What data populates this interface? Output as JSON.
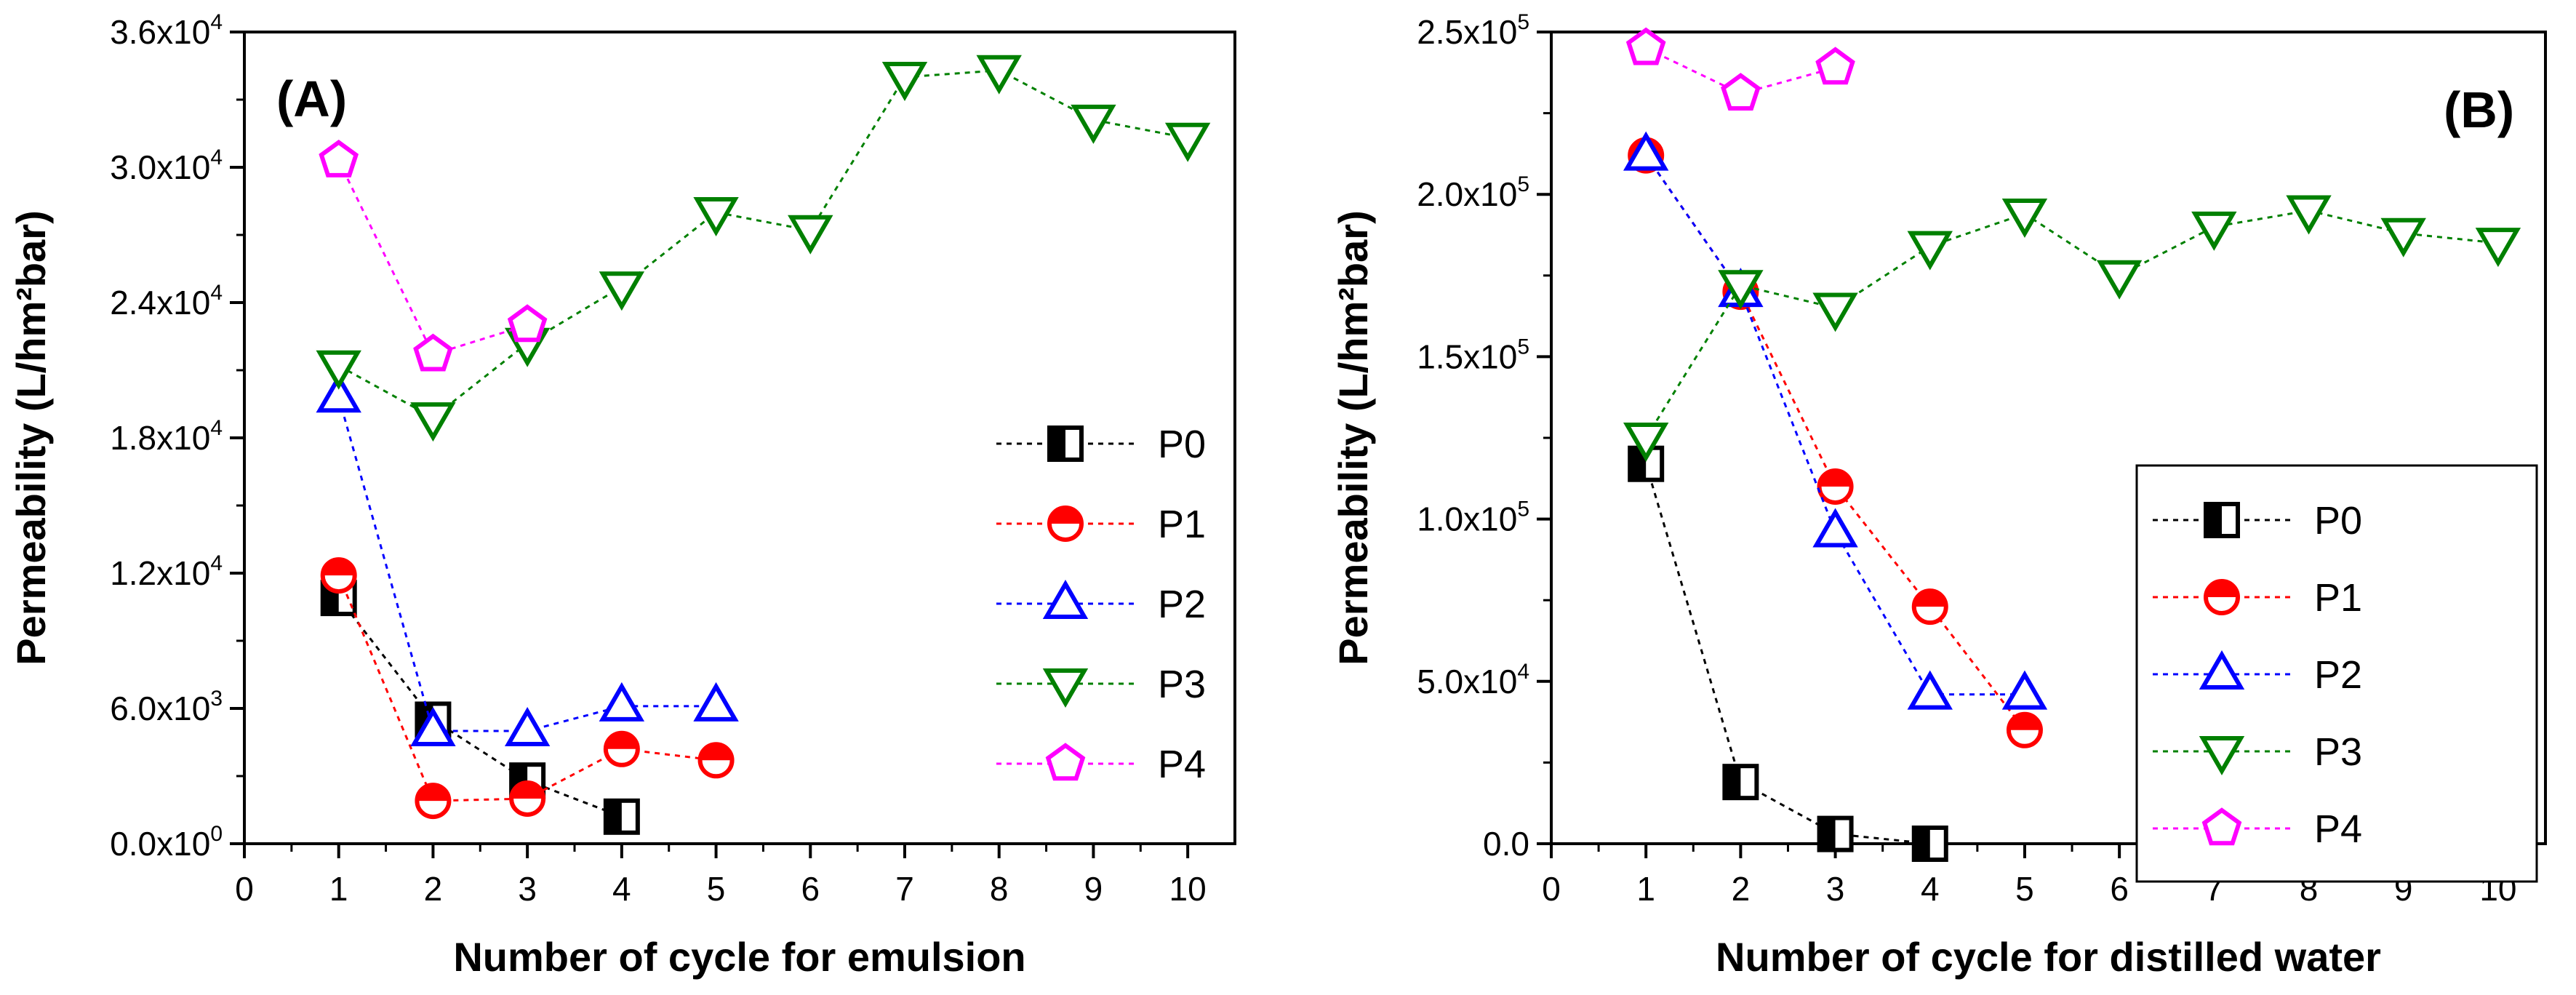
{
  "chart_data": [
    {
      "type": "scatter",
      "panel_label": "(A)",
      "xlabel": "Number of cycle for emulsion",
      "ylabel": "Permeability (L/hm²bar)",
      "xlim": [
        0,
        10.5
      ],
      "ylim": [
        0,
        36000
      ],
      "xticks": [
        0,
        1,
        2,
        3,
        4,
        5,
        6,
        7,
        8,
        9,
        10
      ],
      "yticks": [
        {
          "value": 0,
          "mantissa": "0.0",
          "exp": "0"
        },
        {
          "value": 6000,
          "mantissa": "6.0",
          "exp": "3"
        },
        {
          "value": 12000,
          "mantissa": "1.2",
          "exp": "4"
        },
        {
          "value": 18000,
          "mantissa": "1.8",
          "exp": "4"
        },
        {
          "value": 24000,
          "mantissa": "2.4",
          "exp": "4"
        },
        {
          "value": 30000,
          "mantissa": "3.0",
          "exp": "4"
        },
        {
          "value": 36000,
          "mantissa": "3.6",
          "exp": "4"
        }
      ],
      "legend_position": "right",
      "series": [
        {
          "name": "P0",
          "color": "#000000",
          "marker": "square",
          "x": [
            1,
            2,
            3,
            4
          ],
          "y": [
            10900,
            5500,
            2800,
            1200
          ]
        },
        {
          "name": "P1",
          "color": "#ff0000",
          "marker": "circle",
          "x": [
            1,
            2,
            3,
            4,
            5
          ],
          "y": [
            11900,
            1900,
            2000,
            4200,
            3700
          ]
        },
        {
          "name": "P2",
          "color": "#0000ff",
          "marker": "triangle-up",
          "x": [
            1,
            2,
            3,
            4,
            5
          ],
          "y": [
            19800,
            5000,
            5000,
            6100,
            6100
          ]
        },
        {
          "name": "P3",
          "color": "#008000",
          "marker": "triangle-down",
          "x": [
            1,
            2,
            3,
            4,
            5,
            6,
            7,
            8,
            9,
            10
          ],
          "y": [
            21200,
            18900,
            22200,
            24700,
            28000,
            27200,
            34000,
            34300,
            32100,
            31300
          ]
        },
        {
          "name": "P4",
          "color": "#ff00ff",
          "marker": "pentagon",
          "x": [
            1,
            2,
            3
          ],
          "y": [
            30300,
            21700,
            23000
          ]
        }
      ]
    },
    {
      "type": "scatter",
      "panel_label": "(B)",
      "xlabel": "Number of cycle for distilled water",
      "ylabel": "Permeability (L/hm²bar)",
      "xlim": [
        0,
        10.5
      ],
      "ylim": [
        0,
        250000
      ],
      "xticks": [
        0,
        1,
        2,
        3,
        4,
        5,
        6,
        7,
        8,
        9,
        10
      ],
      "yticks": [
        {
          "value": 0,
          "mantissa": "0.0",
          "exp": ""
        },
        {
          "value": 50000,
          "mantissa": "5.0",
          "exp": "4"
        },
        {
          "value": 100000,
          "mantissa": "1.0",
          "exp": "5"
        },
        {
          "value": 150000,
          "mantissa": "1.5",
          "exp": "5"
        },
        {
          "value": 200000,
          "mantissa": "2.0",
          "exp": "5"
        },
        {
          "value": 250000,
          "mantissa": "2.5",
          "exp": "5"
        }
      ],
      "legend_position": "bottom-right",
      "series": [
        {
          "name": "P0",
          "color": "#000000",
          "marker": "square",
          "x": [
            1,
            2,
            3,
            4
          ],
          "y": [
            117000,
            19000,
            3000,
            0
          ]
        },
        {
          "name": "P1",
          "color": "#ff0000",
          "marker": "circle",
          "x": [
            1,
            2,
            3,
            4,
            5
          ],
          "y": [
            212000,
            170000,
            110000,
            73000,
            35000
          ]
        },
        {
          "name": "P2",
          "color": "#0000ff",
          "marker": "triangle-up",
          "x": [
            1,
            2,
            3,
            4,
            5
          ],
          "y": [
            212000,
            170000,
            96000,
            46000,
            46000
          ]
        },
        {
          "name": "P3",
          "color": "#008000",
          "marker": "triangle-down",
          "x": [
            1,
            2,
            3,
            4,
            5,
            6,
            7,
            8,
            9,
            10
          ],
          "y": [
            125000,
            172000,
            165000,
            184000,
            194000,
            175000,
            190000,
            195000,
            188000,
            185000
          ]
        },
        {
          "name": "P4",
          "color": "#ff00ff",
          "marker": "pentagon",
          "x": [
            1,
            2,
            3
          ],
          "y": [
            245000,
            231000,
            239000
          ]
        }
      ]
    }
  ]
}
